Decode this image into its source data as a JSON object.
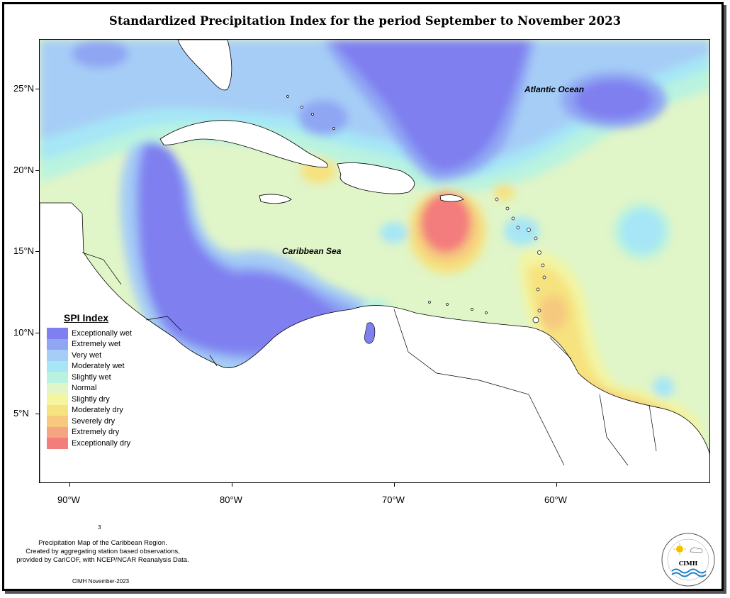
{
  "title": "Standardized Precipitation Index for the period September to November 2023",
  "y_ticks": [
    {
      "label": "25°N",
      "lat": 25
    },
    {
      "label": "20°N",
      "lat": 20
    },
    {
      "label": "15°N",
      "lat": 15
    },
    {
      "label": "10°N",
      "lat": 10
    },
    {
      "label": "5°N",
      "lat": 5
    }
  ],
  "x_ticks": [
    {
      "label": "90°W",
      "lon": -90
    },
    {
      "label": "80°W",
      "lon": -80
    },
    {
      "label": "70°W",
      "lon": -70
    },
    {
      "label": "60°W",
      "lon": -60
    }
  ],
  "map_labels": {
    "atlantic": "Atlantic Ocean",
    "caribbean": "Caribbean Sea"
  },
  "legend": {
    "title": "SPI Index",
    "items": [
      {
        "label": "Exceptionally wet",
        "color": "#7f7ff0"
      },
      {
        "label": "Extremely wet",
        "color": "#8fa6f3"
      },
      {
        "label": "Very wet",
        "color": "#a6cdf6"
      },
      {
        "label": "Moderately wet",
        "color": "#a6e6f6"
      },
      {
        "label": "Slightly wet",
        "color": "#b9f3df"
      },
      {
        "label": "Normal",
        "color": "#e0f5c8"
      },
      {
        "label": "Slightly dry",
        "color": "#f3f5a0"
      },
      {
        "label": "Moderately dry",
        "color": "#f6e27f"
      },
      {
        "label": "Severely dry",
        "color": "#f6c97f"
      },
      {
        "label": "Extremely dry",
        "color": "#f5a57f"
      },
      {
        "label": "Exceptionally dry",
        "color": "#f37c7c"
      }
    ]
  },
  "footnote": {
    "line1": "Precipitation Map of the Caribbean Region.",
    "line2": "Created by aggregating station based observations,",
    "line3": "provided by CariCOF, with NCEP/NCAR Reanalysis Data."
  },
  "small_number": "3",
  "credit": "CIMH November-2023",
  "logo_text": "CIMH"
}
